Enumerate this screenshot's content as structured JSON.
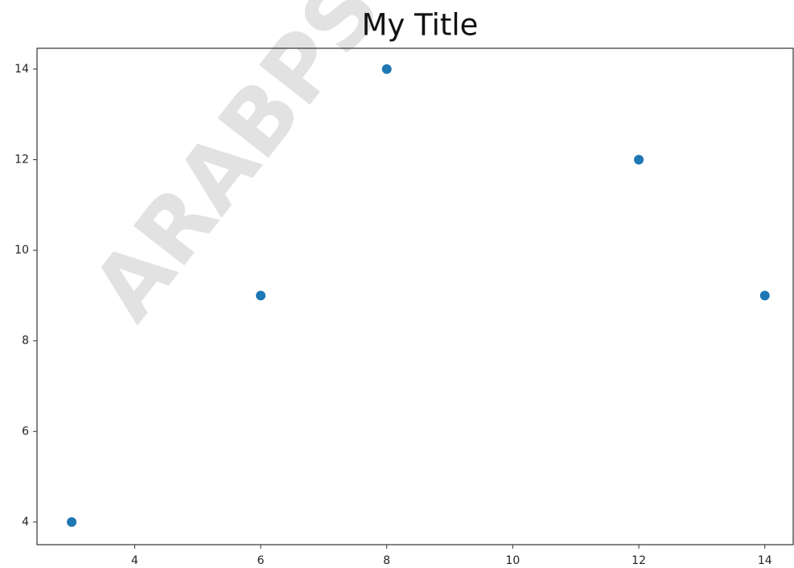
{
  "chart_data": {
    "type": "scatter",
    "title": "My Title",
    "watermark": "ARABPS",
    "x": [
      3,
      6,
      8,
      12,
      14
    ],
    "values": [
      4,
      9,
      14,
      12,
      9
    ],
    "color": "#1f77b4",
    "xlim": [
      2.45,
      14.45
    ],
    "ylim": [
      3.5,
      14.46
    ],
    "xticks": [
      4,
      6,
      8,
      10,
      12,
      14
    ],
    "yticks": [
      4,
      6,
      8,
      10,
      12,
      14
    ],
    "grid": false
  }
}
